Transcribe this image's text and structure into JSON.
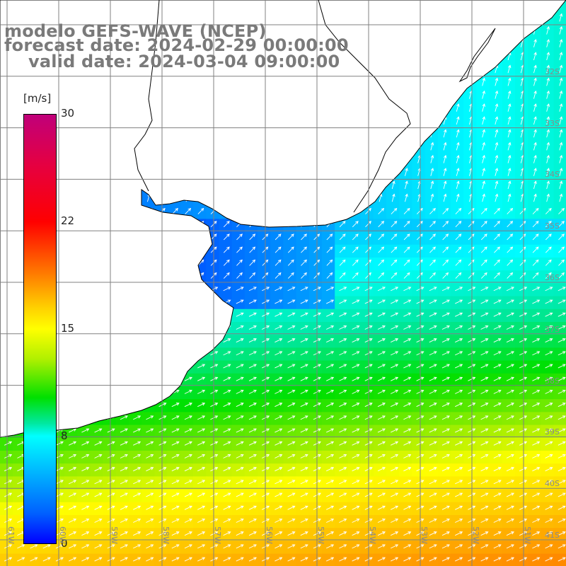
{
  "header": {
    "line1": "modelo GEFS-WAVE (NCEP)",
    "line2": "forecast date: 2024-02-29 00:00:00",
    "line3": "valid date: 2024-03-04 09:00:00"
  },
  "colorbar": {
    "unit": "[m/s]",
    "ticks": [
      "30",
      "22",
      "15",
      "8",
      "0"
    ],
    "min": 0,
    "max": 30
  },
  "map": {
    "lon_range": [
      -61,
      -50
    ],
    "lat_range": [
      -41.5,
      -31
    ],
    "lat_labels": [
      "32S",
      "33S",
      "34S",
      "35S",
      "36S",
      "37S",
      "38S",
      "39S",
      "40S",
      "41S"
    ],
    "lon_labels": [
      "61W",
      "60W",
      "59W",
      "58W",
      "57W",
      "56W",
      "55W",
      "54W",
      "53W",
      "52W",
      "51W"
    ],
    "field": "wind speed",
    "colors": {
      "land": "#ffffff",
      "coast": "#000000",
      "grid": "#808080",
      "arrows": "#ffffff"
    }
  }
}
